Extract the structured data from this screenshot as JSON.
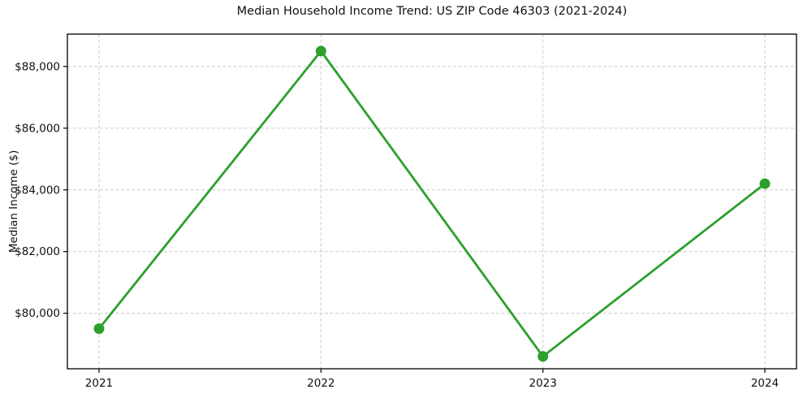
{
  "chart": {
    "title": "Median Household Income Trend: US ZIP Code 46303 (2021-2024)",
    "ylabel": "Median Income ($)"
  },
  "chart_data": {
    "type": "line",
    "title": "Median Household Income Trend: US ZIP Code 46303 (2021-2024)",
    "xlabel": "",
    "ylabel": "Median Income ($)",
    "categories": [
      "2021",
      "2022",
      "2023",
      "2024"
    ],
    "values": [
      79500,
      88500,
      78600,
      84200
    ],
    "y_ticks": [
      80000,
      82000,
      84000,
      86000,
      88000
    ],
    "y_tick_labels": [
      "$80,000",
      "$82,000",
      "$84,000",
      "$86,000",
      "$88,000"
    ],
    "x_tick_labels": [
      "2021",
      "2022",
      "2023",
      "2024"
    ],
    "ylim": [
      78200,
      89050
    ],
    "grid": true,
    "grid_style": "dashed",
    "legend_position": "none",
    "line_color": "#2ca02c",
    "marker": "circle",
    "marker_color": "#2ca02c",
    "grid_color": "#cccccc",
    "axis_color": "#000000",
    "background_color": "#ffffff"
  }
}
